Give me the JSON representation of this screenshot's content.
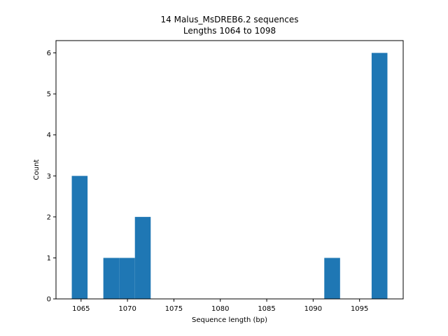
{
  "chart_data": {
    "type": "bar",
    "title": "14 Malus_MsDREB6.2 sequences",
    "subtitle": "Lengths 1064 to 1098",
    "xlabel": "Sequence length (bp)",
    "ylabel": "Count",
    "xlim": [
      1062.3,
      1099.7
    ],
    "ylim": [
      0,
      6.3
    ],
    "xticks": [
      1065,
      1070,
      1075,
      1080,
      1085,
      1090,
      1095
    ],
    "yticks": [
      0,
      1,
      2,
      3,
      4,
      5,
      6
    ],
    "grid": false,
    "bar_color": "#1f77b4",
    "bins": [
      {
        "start": 1064.0,
        "end": 1065.7,
        "count": 3
      },
      {
        "start": 1065.7,
        "end": 1067.4,
        "count": 0
      },
      {
        "start": 1067.4,
        "end": 1069.1,
        "count": 1
      },
      {
        "start": 1069.1,
        "end": 1070.8,
        "count": 1
      },
      {
        "start": 1070.8,
        "end": 1072.5,
        "count": 2
      },
      {
        "start": 1072.5,
        "end": 1074.2,
        "count": 0
      },
      {
        "start": 1074.2,
        "end": 1075.9,
        "count": 0
      },
      {
        "start": 1075.9,
        "end": 1077.6,
        "count": 0
      },
      {
        "start": 1077.6,
        "end": 1079.3,
        "count": 0
      },
      {
        "start": 1079.3,
        "end": 1081.0,
        "count": 0
      },
      {
        "start": 1081.0,
        "end": 1082.7,
        "count": 0
      },
      {
        "start": 1082.7,
        "end": 1084.4,
        "count": 0
      },
      {
        "start": 1084.4,
        "end": 1086.1,
        "count": 0
      },
      {
        "start": 1086.1,
        "end": 1087.8,
        "count": 0
      },
      {
        "start": 1087.8,
        "end": 1089.5,
        "count": 0
      },
      {
        "start": 1089.5,
        "end": 1091.2,
        "count": 0
      },
      {
        "start": 1091.2,
        "end": 1092.9,
        "count": 1
      },
      {
        "start": 1092.9,
        "end": 1094.6,
        "count": 0
      },
      {
        "start": 1094.6,
        "end": 1096.3,
        "count": 0
      },
      {
        "start": 1096.3,
        "end": 1098.0,
        "count": 6
      }
    ]
  }
}
